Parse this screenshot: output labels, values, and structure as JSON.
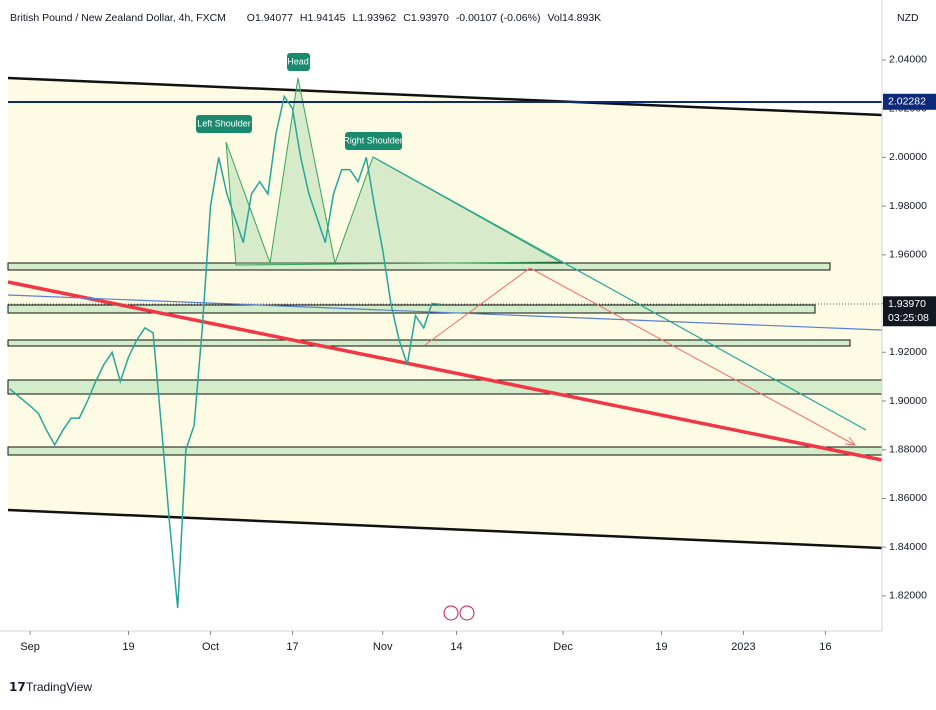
{
  "chart_data": {
    "type": "line",
    "title": "British Pound / New Zealand Dollar, 4h, FXCM",
    "ohlc": [
      "O1.94077",
      "H1.94145",
      "L1.93962",
      "C1.93970",
      "-0.00107 (-0.06%)",
      "Vol14.893K"
    ],
    "currency": "NZD",
    "brand": "TradingView",
    "annotations": [
      "Left Shoulder",
      "Head",
      "Right Shoulder"
    ],
    "price_tags": [
      2.02282,
      {
        "value": 1.9397,
        "label": "1.93970"
      }
    ],
    "countdown": "03:25:08",
    "x": [
      -2.5,
      0,
      1,
      2,
      3,
      4,
      5,
      6,
      7,
      8,
      9,
      10,
      11,
      12,
      13,
      14,
      15,
      16,
      17,
      18,
      19,
      20,
      21,
      22,
      23,
      24,
      25,
      26,
      27,
      28,
      29,
      30,
      31,
      32,
      33,
      34,
      35,
      36,
      37,
      38,
      39,
      40,
      41,
      42,
      43,
      44,
      45,
      46,
      47,
      48,
      49,
      50
    ],
    "series": [
      {
        "name": "GBPNZD",
        "color": "#26a69a",
        "values": [
          1.905,
          1.898,
          1.895,
          1.888,
          1.882,
          1.888,
          1.893,
          1.893,
          1.9,
          1.908,
          1.915,
          1.92,
          1.908,
          1.918,
          1.925,
          1.93,
          1.928,
          1.89,
          1.85,
          1.815,
          1.88,
          1.89,
          1.93,
          1.98,
          2.0,
          1.985,
          1.975,
          1.965,
          1.985,
          1.99,
          1.985,
          2.01,
          2.025,
          2.02,
          2.0,
          1.985,
          1.975,
          1.965,
          1.985,
          1.995,
          1.995,
          1.99,
          2.0,
          1.98,
          1.962,
          1.94,
          1.925,
          1.915,
          1.935,
          1.93,
          1.94,
          1.9397
        ]
      }
    ],
    "xlim": [
      -2.7,
      103.9
    ],
    "xticks": [
      {
        "value": 0,
        "label": "Sep"
      },
      {
        "value": 12,
        "label": "19"
      },
      {
        "value": 22,
        "label": "Oct"
      },
      {
        "value": 32,
        "label": "17"
      },
      {
        "value": 43,
        "label": "Nov"
      },
      {
        "value": 52,
        "label": "14"
      },
      {
        "value": 65,
        "label": "Dec"
      },
      {
        "value": 77,
        "label": "19"
      },
      {
        "value": 87,
        "label": "2023"
      },
      {
        "value": 97,
        "label": "16"
      }
    ],
    "ylim": [
      1.806,
      2.0646
    ],
    "yticks": [
      {
        "value": 1.82,
        "label": "1.82000"
      },
      {
        "value": 1.84,
        "label": "1.84000"
      },
      {
        "value": 1.86,
        "label": "1.86000"
      },
      {
        "value": 1.88,
        "label": "1.88000"
      },
      {
        "value": 1.9,
        "label": "1.90000"
      },
      {
        "value": 1.92,
        "label": "1.92000"
      },
      {
        "value": 1.94,
        "label": "1.94000"
      },
      {
        "value": 1.96,
        "label": "1.96000"
      },
      {
        "value": 1.98,
        "label": "1.98000"
      },
      {
        "value": 2.0,
        "label": "2.00000"
      },
      {
        "value": 2.02,
        "label": "2.02000"
      },
      {
        "value": 2.04,
        "label": "2.04000"
      }
    ]
  }
}
